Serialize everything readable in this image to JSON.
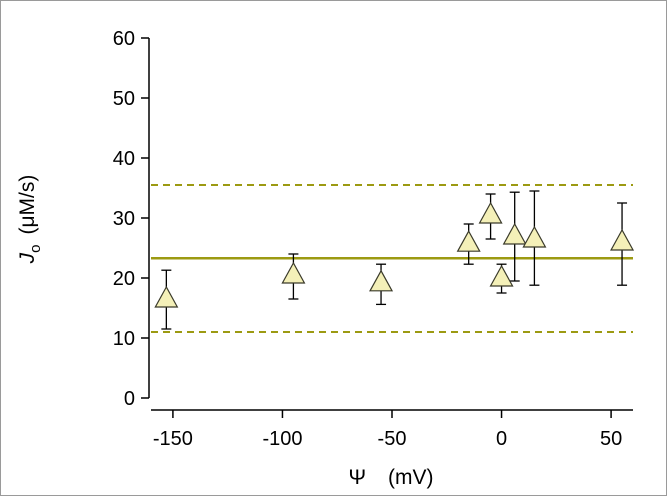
{
  "chart_data": {
    "type": "scatter",
    "xlabel_symbol": "Ψ",
    "xlabel_unit": "(mV)",
    "ylabel_main": "J",
    "ylabel_sub": "o",
    "ylabel_unit": "(μM/s)",
    "xlim": [
      -160,
      60
    ],
    "ylim": [
      0,
      60
    ],
    "xticks": [
      -150,
      -100,
      -50,
      0,
      50
    ],
    "yticks": [
      0,
      10,
      20,
      30,
      40,
      50,
      60
    ],
    "grid": false,
    "points": [
      {
        "x": -153,
        "y": 16.5,
        "err_low": 11.5,
        "err_high": 21.3
      },
      {
        "x": -95,
        "y": 20.5,
        "err_low": 16.5,
        "err_high": 24.0
      },
      {
        "x": -55,
        "y": 19.2,
        "err_low": 15.6,
        "err_high": 22.3
      },
      {
        "x": -15,
        "y": 25.8,
        "err_low": 22.3,
        "err_high": 29.0
      },
      {
        "x": -5,
        "y": 30.5,
        "err_low": 26.5,
        "err_high": 34.0
      },
      {
        "x": 0,
        "y": 20.0,
        "err_low": 17.5,
        "err_high": 22.3
      },
      {
        "x": 6,
        "y": 27.0,
        "err_low": 19.5,
        "err_high": 34.3
      },
      {
        "x": 15,
        "y": 26.5,
        "err_low": 18.8,
        "err_high": 34.5
      },
      {
        "x": 55,
        "y": 26.0,
        "err_low": 18.8,
        "err_high": 32.5
      }
    ],
    "mean_line": 23.3,
    "bounds": [
      11.0,
      35.5
    ],
    "colors": {
      "marker_fill": "#f4f0b8",
      "marker_stroke": "#3a3a2a",
      "line": "#9c9a12",
      "errorbar": "#000000",
      "axis": "#000000"
    }
  }
}
